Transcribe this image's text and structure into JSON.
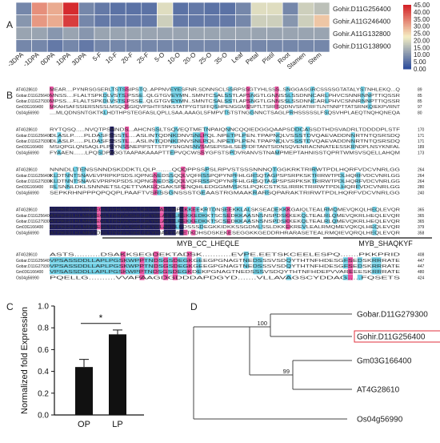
{
  "panels": {
    "a": "A",
    "b": "B",
    "c": "C",
    "d": "D"
  },
  "heatmap": {
    "columns": [
      "-3DPA",
      "-1DPA",
      "0DPA",
      "1DPA",
      "3DPA",
      "5-F",
      "10-F",
      "20-F",
      "25-F",
      "5-O",
      "10-O",
      "20-O",
      "25-O",
      "35-O",
      "Leaf",
      "Petal",
      "Pistil",
      "Root",
      "Stamen",
      "Stem"
    ],
    "rows": [
      {
        "label": "Gohir.D11G256400",
        "values": [
          8,
          33,
          30,
          44,
          8,
          6,
          5,
          5,
          5,
          20,
          5,
          6,
          5,
          5,
          8,
          20,
          20,
          8,
          18,
          16
        ]
      },
      {
        "label": "Gohir.A11G246400",
        "values": [
          10,
          32,
          30,
          42,
          8,
          6,
          6,
          6,
          6,
          18,
          6,
          6,
          6,
          6,
          8,
          18,
          18,
          10,
          18,
          27
        ]
      },
      {
        "label": "Gohir.A11G132800",
        "values": [
          12,
          12,
          10,
          12,
          10,
          12,
          12,
          12,
          12,
          12,
          12,
          12,
          12,
          12,
          12,
          12,
          12,
          12,
          12,
          12
        ]
      },
      {
        "label": "Gohir.D11G138900",
        "values": [
          8,
          8,
          6,
          8,
          6,
          8,
          8,
          8,
          8,
          8,
          8,
          8,
          8,
          8,
          8,
          8,
          8,
          8,
          8,
          8
        ]
      }
    ],
    "scale_min": 0,
    "scale_max": 45,
    "scale_ticks": [
      "45.00",
      "40.00",
      "35.00",
      "30.00",
      "25.00",
      "20.00",
      "15.00",
      "10.00",
      "5.00",
      "0.00"
    ]
  },
  "alignment": {
    "blocks": [
      {
        "names": [
          "AT4G28610",
          "Gobar.D11G256400",
          "Gobar.D11G279300",
          "Gm03G166400",
          "Os04g56990"
        ],
        "seqs": [
          "MEAR....PYNRSGSERLTSTSSIPSTQ..APPNVEYESFNR.SDNNSCLSSRPSSGTYHLSSS..SNGGASGRCSSSSGTATALYSTNHLEKQ...Q",
          "MNSS....FLALTSPKDLVSTS.PSSE..QLGTGVEYMN..SMNTCSALSSTLAPSNGTLGNNSSLSSDNNCARLPHVCSNNRNNPTTIQSSR",
          "MPSS....FLALTSPKDLVSTS.PSSE..QLGTGVEYMN..SMNTCSALSSTLAPSNGTLGNNSSLSSDNNCARLPHVCSNNRNNPTTIQSSR",
          "MKAHSAFSSIERSNSSLMSQQSGIQVPSHTFSNKSTATPYGTSFFQSHPENGGMSSPTLTSRFSQDNVSFATRFTLNTNNPTTATSRNKQIEKPVRNT",
          "....MLQDNSNTGKTKLHDTHPSTEGFASLQPLLSAA.AAAGLSFMPVTSTSTNGGNNCTSAGLPRHSSSSSLFSQSVHPLAEQTNQHQNEQA"
        ],
        "ends": [
          "89",
          "85",
          "85",
          "97",
          "80"
        ]
      },
      {
        "names": [
          "AT4G28610",
          "Gobar.D11G256400",
          "Gobar.D11G279300",
          "Gm03G166400",
          "Os04g56990"
        ],
        "seqs": [
          "RYTQSQ.....NVQTPSNNDS...AHCNSSLTSQVEQTMETNPAIQNNCQQIEDGGQAAPSDDCASSDTHDSVADRLTDDDDPLSTF",
          "DLASLP......PLDASFSSSTL....ASLINTQDNKDNVSNLPQL.NPETPLPEN.TPAPNQLVSSSTDVQAEVADDNNRTNTQSRSDQ",
          "DLASLP......PLDASFSSSTL....ASLINTQDNKDNVSNLPQL.NPETPLPEN.TPAPNQLVSSSTDVQAEVADDNNRTNTQSRSDQ",
          "MSIQPGLQNSAQLPLPSYNSSNEPIPSTTSTPYSNGNSNVSMSEPISHLSEPFDFTANTSIDNSQVENRACNNATEESSKRNDPLNSYKNFAL",
          "FYAAEN.......LPQSDPAGGTAAPAKAAAPTTEPVQCWSSYGFSTSPDVRANVSTNAMPMEPTAHNISSTQPRTWMSVSQELLAHQM"
        ],
        "ends": [
          "170",
          "171",
          "171",
          "189",
          "173"
        ]
      },
      {
        "names": [
          "AT4G28610",
          "Gobar.D11G256400",
          "Gobar.D11G279300",
          "Gm03G166400",
          "Os04g56990"
        ],
        "seqs": [
          "NNNDLLTENSSNNDSKDDKTLQLP.........QQQPPSSPSLRPVSTSSSNNNQTGGKRKTRIRWTPDLHQRFVDCVNRLGG",
          "KLDTNNTSNAVEVPRPKPSDS.IQPNGNEDSSQQLVQFRSSPQPYNPFHLGRSQTAGPSPSRPKSKTRIRWTPDLHQRFVDCVNRLGG",
          "KLDTNNTSNAVEVPRPKPSDS.IQPNGNEDSSQQLVQFRSSPQPYNPFHLGRSQTAGPSPSRPKSKTRIRWTPDLHQRFVDCVNRLGG",
          "RLSNNLDKLSNNNETSLQETTVAKEQGAKSPENQHLEDGGMMSKSLPQKCSTKSLIRRKTRIRWTPDLHQRFVDCVNRLGG",
          "SEPKRHNPPPQPQQPLPAAFTVSRSSGNSSSTGEAASTRGMAAKRARSQPARAKTRIRWTPDLHQRFVDCVNRLGG"
        ],
        "ends": [
          "264",
          "264",
          "264",
          "280",
          "240"
        ]
      },
      {
        "names": [
          "AT4G28610",
          "Gobar.D11G256400",
          "Gobar.D11G279300",
          "Gm03G166400",
          "Os04g56990"
        ],
        "seqs": [
          "ATPKGILKLMNVEGLTIYHVKSHLQKYRLAKYMPEKKEEKRTDNSEEKKLALSKSEADEKKKGAIQLTEALRMQMEVQKQLHEQLEVQR",
          "ATPKGILKLMNVEGLTIYHVKSHLQKYRLAKYLPEKKEDKKTSCSEDKKAASNSNSPDSKKEKQLTEALRLQMEVQKRLHEQLEVQR",
          "ATPKGILKLMNVEGLTIYHVKSHLQKYRLAKYLPEKKEDKKTSCSEDKKAASNSNSPDSKKEKQLTEALRLQMEVQKRLHEQLEVQR",
          "ATPKGILKLMNVEGLTIYHVKSHLQKYRLAKYLPDSSSDEGKKIDKKSSGDMLSSLDKKEKREVLEALRMQMEVQKQLHEQLEVQR",
          "ATPKGILKLMNVDGLTIYHVKSHLQKYRIAKYMPETKDHSDSKEKESEGGKKGEDDRHRARASETEALRMQIEVQRQLHEQLEVQR"
        ],
        "ends": [
          "365",
          "365",
          "365",
          "379",
          "358"
        ]
      },
      {
        "names": [
          "AT4G28610",
          "Gobar.D11G256400",
          "Gobar.D11G279300",
          "Gm03G166400",
          "Os04g56990"
        ],
        "seqs": [
          "ASTS..........DSAKKSEGDEKTADSK...........EVPE.EETSKCEELESPQ.......PKKPRID",
          "VPSASSDDLLAPLPGSKWPPTNDSGSDEGKGEEGPGNAGTNEDSSSVSDQYTHTNFHDESGFSEDSKRRRATE",
          "VPSASSDDLLAPLPGSKWPPTNDSGSDEGKGEEGPGNAGTNEDSSSVSDQYTHTNFHDESGFSEDSKRRRATE",
          "VPSASSDDLLAPLPGSKWPPTNDSGSDEGKDEKPGNAGTNEDSSSVSDQYTHTNFHDEPVVAREEESKRRRATE",
          "PQELLG..........VVAPAAGDGDDDAPDGYD.......VLLAVAGSCYDDAG.....FQSETS"
        ],
        "ends": [
          "408",
          "447",
          "447",
          "480",
          "424"
        ]
      }
    ],
    "motifs": [
      "MYB_CC_LHEQLE",
      "MYB_SHAQKYF"
    ]
  },
  "bar_chart_data": {
    "type": "bar",
    "categories": [
      "OP",
      "LP"
    ],
    "values": [
      0.44,
      0.74
    ],
    "errors": [
      0.07,
      0.04
    ],
    "ylabel": "Normalized fold Expression",
    "ylim": [
      0.0,
      1.0
    ],
    "yticks": [
      "0.0",
      "0.2",
      "0.4",
      "0.6",
      "0.8",
      "1.0"
    ],
    "significance": "*"
  },
  "tree": {
    "leaves": [
      "Gobar.D11G279300",
      "Gohir.D11G256400",
      "Gm03G166400",
      "AT4G28610",
      "Os04g56990"
    ],
    "highlighted": "Gohir.D11G256400",
    "highlight_color": "#e0323c",
    "bootstraps": [
      "100",
      "99"
    ]
  },
  "colors": {
    "heat_low": "#2f4e9c",
    "heat_mid": "#f5efc4",
    "heat_high": "#d42228",
    "align_identical": "#1c1a5a",
    "align_high": "#e84fa0",
    "align_low": "#6fd0e6"
  }
}
